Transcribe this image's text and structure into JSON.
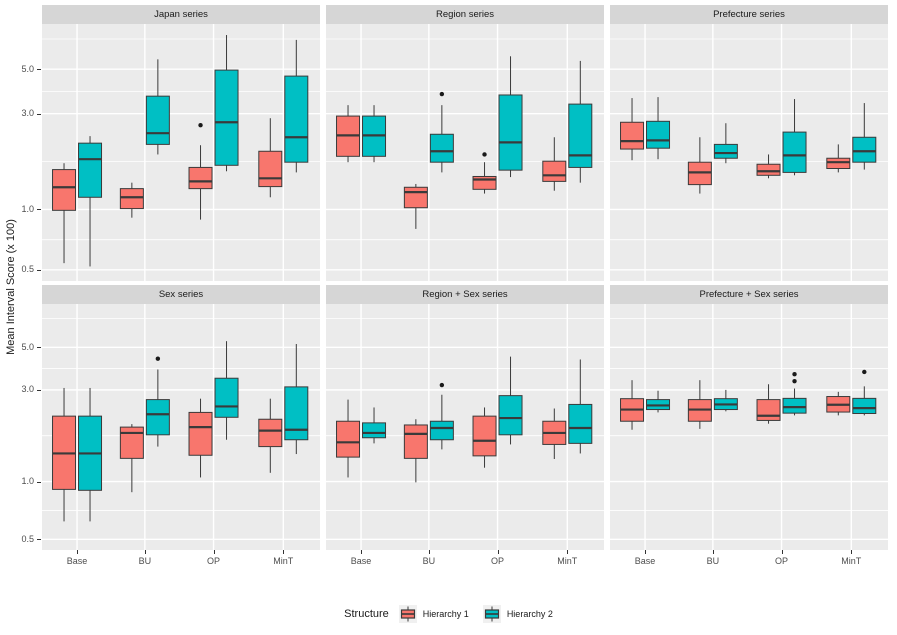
{
  "figure": {
    "ylabel": "Mean Interval Score (x 100)",
    "legend": {
      "title": "Structure",
      "entries": [
        {
          "label": "Hierarchy 1",
          "color": "#F8766D"
        },
        {
          "label": "Hierarchy 2",
          "color": "#00BFC4"
        }
      ]
    }
  },
  "theme": {
    "panel_bg": "#EBEBEB",
    "strip_bg": "#D6D6D6",
    "grid_color": "#FFFFFF",
    "box_stroke": "#3A3A3A",
    "outlier_color": "#1A1A1A",
    "tick_text_color": "#4D4D4D",
    "legend_key_bg": "#F0F0F0"
  },
  "chart_data": {
    "type": "boxplot",
    "title": "",
    "ylabel": "Mean Interval Score (x 100)",
    "xlabel": "",
    "y_scale": "log10",
    "ylim": [
      0.44,
      8.4
    ],
    "y_major_ticks": [
      5.0,
      3.0,
      1.0,
      0.5
    ],
    "y_tick_labels": [
      "5.0",
      "3.0",
      "1.0",
      "0.5"
    ],
    "y_minor_gridlines": [
      0.707,
      1.732,
      3.873,
      7.071
    ],
    "grid": "white major+minor on gray panels",
    "legend_position": "bottom",
    "categories": [
      "Base",
      "BU",
      "OP",
      "MinT"
    ],
    "series": [
      "Hierarchy 1",
      "Hierarchy 2"
    ],
    "series_colors": [
      "#F8766D",
      "#00BFC4"
    ],
    "facet_layout": {
      "rows": 2,
      "cols": 3
    },
    "facets": [
      {
        "title": "Japan series",
        "hierarchy1": [
          {
            "min": 0.54,
            "q1": 0.99,
            "med": 1.29,
            "q3": 1.58,
            "max": 1.7,
            "out": []
          },
          {
            "min": 0.91,
            "q1": 1.01,
            "med": 1.15,
            "q3": 1.27,
            "max": 1.36,
            "out": []
          },
          {
            "min": 0.89,
            "q1": 1.27,
            "med": 1.38,
            "q3": 1.62,
            "max": 2.09,
            "out": [
              2.63
            ]
          },
          {
            "min": 1.15,
            "q1": 1.3,
            "med": 1.43,
            "q3": 1.95,
            "max": 2.85,
            "out": []
          }
        ],
        "hierarchy2": [
          {
            "min": 0.52,
            "q1": 1.15,
            "med": 1.78,
            "q3": 2.14,
            "max": 2.32,
            "out": []
          },
          {
            "min": 1.88,
            "q1": 2.11,
            "med": 2.4,
            "q3": 3.67,
            "max": 5.6,
            "out": []
          },
          {
            "min": 1.55,
            "q1": 1.66,
            "med": 2.72,
            "q3": 4.95,
            "max": 7.4,
            "out": []
          },
          {
            "min": 1.53,
            "q1": 1.72,
            "med": 2.29,
            "q3": 4.62,
            "max": 7.0,
            "out": []
          }
        ]
      },
      {
        "title": "Region series",
        "hierarchy1": [
          {
            "min": 1.72,
            "q1": 1.84,
            "med": 2.34,
            "q3": 2.92,
            "max": 3.31,
            "out": []
          },
          {
            "min": 0.8,
            "q1": 1.02,
            "med": 1.22,
            "q3": 1.29,
            "max": 1.34,
            "out": []
          },
          {
            "min": 1.2,
            "q1": 1.26,
            "med": 1.41,
            "q3": 1.46,
            "max": 1.72,
            "out": [
              1.88
            ]
          },
          {
            "min": 1.24,
            "q1": 1.38,
            "med": 1.48,
            "q3": 1.74,
            "max": 2.29,
            "out": []
          }
        ],
        "hierarchy2": [
          {
            "min": 1.72,
            "q1": 1.84,
            "med": 2.34,
            "q3": 2.92,
            "max": 3.31,
            "out": []
          },
          {
            "min": 1.53,
            "q1": 1.72,
            "med": 1.95,
            "q3": 2.37,
            "max": 3.31,
            "out": [
              3.76
            ]
          },
          {
            "min": 1.45,
            "q1": 1.57,
            "med": 2.16,
            "q3": 3.72,
            "max": 5.8,
            "out": []
          },
          {
            "min": 1.36,
            "q1": 1.62,
            "med": 1.86,
            "q3": 3.35,
            "max": 5.5,
            "out": []
          }
        ]
      },
      {
        "title": "Prefecture series",
        "hierarchy1": [
          {
            "min": 1.76,
            "q1": 2.0,
            "med": 2.19,
            "q3": 2.72,
            "max": 3.59,
            "out": []
          },
          {
            "min": 1.2,
            "q1": 1.33,
            "med": 1.53,
            "q3": 1.72,
            "max": 2.29,
            "out": []
          },
          {
            "min": 1.43,
            "q1": 1.48,
            "med": 1.55,
            "q3": 1.68,
            "max": 1.88,
            "out": []
          },
          {
            "min": 1.53,
            "q1": 1.6,
            "med": 1.72,
            "q3": 1.8,
            "max": 2.11,
            "out": []
          }
        ],
        "hierarchy2": [
          {
            "min": 1.78,
            "q1": 2.02,
            "med": 2.21,
            "q3": 2.75,
            "max": 3.63,
            "out": []
          },
          {
            "min": 1.7,
            "q1": 1.8,
            "med": 1.91,
            "q3": 2.11,
            "max": 2.69,
            "out": []
          },
          {
            "min": 1.48,
            "q1": 1.53,
            "med": 1.86,
            "q3": 2.43,
            "max": 3.55,
            "out": []
          },
          {
            "min": 1.58,
            "q1": 1.72,
            "med": 1.95,
            "q3": 2.29,
            "max": 3.39,
            "out": []
          }
        ]
      },
      {
        "title": "Sex series",
        "hierarchy1": [
          {
            "min": 0.62,
            "q1": 0.91,
            "med": 1.4,
            "q3": 2.19,
            "max": 3.07,
            "out": []
          },
          {
            "min": 0.88,
            "q1": 1.32,
            "med": 1.79,
            "q3": 1.92,
            "max": 1.99,
            "out": []
          },
          {
            "min": 1.05,
            "q1": 1.37,
            "med": 1.92,
            "q3": 2.29,
            "max": 2.7,
            "out": []
          },
          {
            "min": 1.11,
            "q1": 1.52,
            "med": 1.84,
            "q3": 2.11,
            "max": 2.7,
            "out": []
          }
        ],
        "hierarchy2": [
          {
            "min": 0.62,
            "q1": 0.9,
            "med": 1.4,
            "q3": 2.19,
            "max": 3.07,
            "out": []
          },
          {
            "min": 1.52,
            "q1": 1.75,
            "med": 2.24,
            "q3": 2.67,
            "max": 3.83,
            "out": [
              4.36
            ]
          },
          {
            "min": 1.65,
            "q1": 2.16,
            "med": 2.46,
            "q3": 3.45,
            "max": 5.38,
            "out": []
          },
          {
            "min": 1.39,
            "q1": 1.65,
            "med": 1.86,
            "q3": 3.11,
            "max": 5.2,
            "out": []
          }
        ]
      },
      {
        "title": "Region + Sex series",
        "hierarchy1": [
          {
            "min": 1.05,
            "q1": 1.34,
            "med": 1.6,
            "q3": 2.06,
            "max": 2.67,
            "out": []
          },
          {
            "min": 0.99,
            "q1": 1.32,
            "med": 1.77,
            "q3": 1.97,
            "max": 2.11,
            "out": []
          },
          {
            "min": 1.18,
            "q1": 1.36,
            "med": 1.63,
            "q3": 2.19,
            "max": 2.43,
            "out": []
          },
          {
            "min": 1.31,
            "q1": 1.56,
            "med": 1.79,
            "q3": 2.06,
            "max": 2.4,
            "out": []
          }
        ],
        "hierarchy2": [
          {
            "min": 1.58,
            "q1": 1.69,
            "med": 1.79,
            "q3": 2.02,
            "max": 2.43,
            "out": []
          },
          {
            "min": 1.47,
            "q1": 1.65,
            "med": 1.9,
            "q3": 2.06,
            "max": 2.83,
            "out": [
              3.18
            ]
          },
          {
            "min": 1.56,
            "q1": 1.75,
            "med": 2.14,
            "q3": 2.8,
            "max": 4.47,
            "out": []
          },
          {
            "min": 1.4,
            "q1": 1.58,
            "med": 1.9,
            "q3": 2.52,
            "max": 4.32,
            "out": []
          }
        ]
      },
      {
        "title": "Prefecture + Sex series",
        "hierarchy1": [
          {
            "min": 1.86,
            "q1": 2.06,
            "med": 2.37,
            "q3": 2.7,
            "max": 3.37,
            "out": []
          },
          {
            "min": 1.88,
            "q1": 2.06,
            "med": 2.37,
            "q3": 2.67,
            "max": 3.37,
            "out": []
          },
          {
            "min": 2.0,
            "q1": 2.08,
            "med": 2.2,
            "q3": 2.67,
            "max": 3.21,
            "out": []
          },
          {
            "min": 2.21,
            "q1": 2.3,
            "med": 2.51,
            "q3": 2.77,
            "max": 2.93,
            "out": []
          }
        ],
        "hierarchy2": [
          {
            "min": 2.29,
            "q1": 2.37,
            "med": 2.49,
            "q3": 2.67,
            "max": 2.97,
            "out": []
          },
          {
            "min": 2.32,
            "q1": 2.37,
            "med": 2.52,
            "q3": 2.7,
            "max": 3.0,
            "out": []
          },
          {
            "min": 2.21,
            "q1": 2.27,
            "med": 2.44,
            "q3": 2.71,
            "max": 3.05,
            "out": [
              3.33,
              3.62
            ]
          },
          {
            "min": 2.21,
            "q1": 2.26,
            "med": 2.41,
            "q3": 2.71,
            "max": 3.13,
            "out": [
              3.72
            ]
          }
        ]
      }
    ]
  }
}
